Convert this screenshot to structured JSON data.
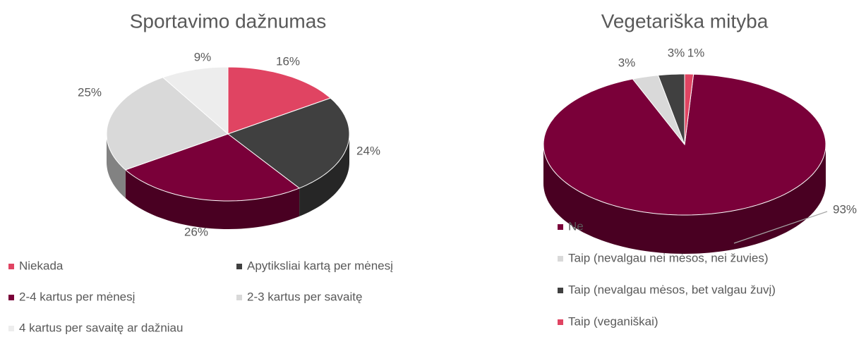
{
  "chart_data": [
    {
      "type": "pie3d",
      "title": "Sportavimo dažnumas",
      "categories": [
        "Niekada",
        "Apytiksliai kartą per mėnesį",
        "2-4 kartus per mėnesį",
        "2-3 kartus per savaitę",
        "4 kartus per savaitę ar dažniau"
      ],
      "values": [
        16,
        24,
        26,
        25,
        9
      ],
      "value_labels": [
        "16%",
        "24%",
        "26%",
        "25%",
        "9%"
      ],
      "colors": [
        "#e04462",
        "#404040",
        "#7a0039",
        "#d9d9d9",
        "#ededed"
      ],
      "legend": "bottom"
    },
    {
      "type": "pie3d",
      "title": "Vegetariška mityba",
      "categories": [
        "Ne",
        "Taip (nevalgau nei mėsos, nei žuvies)",
        "Taip (nevalgau mėsos, bet valgau žuvį)",
        "Taip (veganiškai)"
      ],
      "values": [
        93,
        3,
        3,
        1
      ],
      "value_labels": [
        "93%",
        "3%",
        "3%",
        "1%"
      ],
      "colors": [
        "#7a0039",
        "#d9d9d9",
        "#404040",
        "#e04462"
      ],
      "legend": "bottom-left"
    }
  ]
}
